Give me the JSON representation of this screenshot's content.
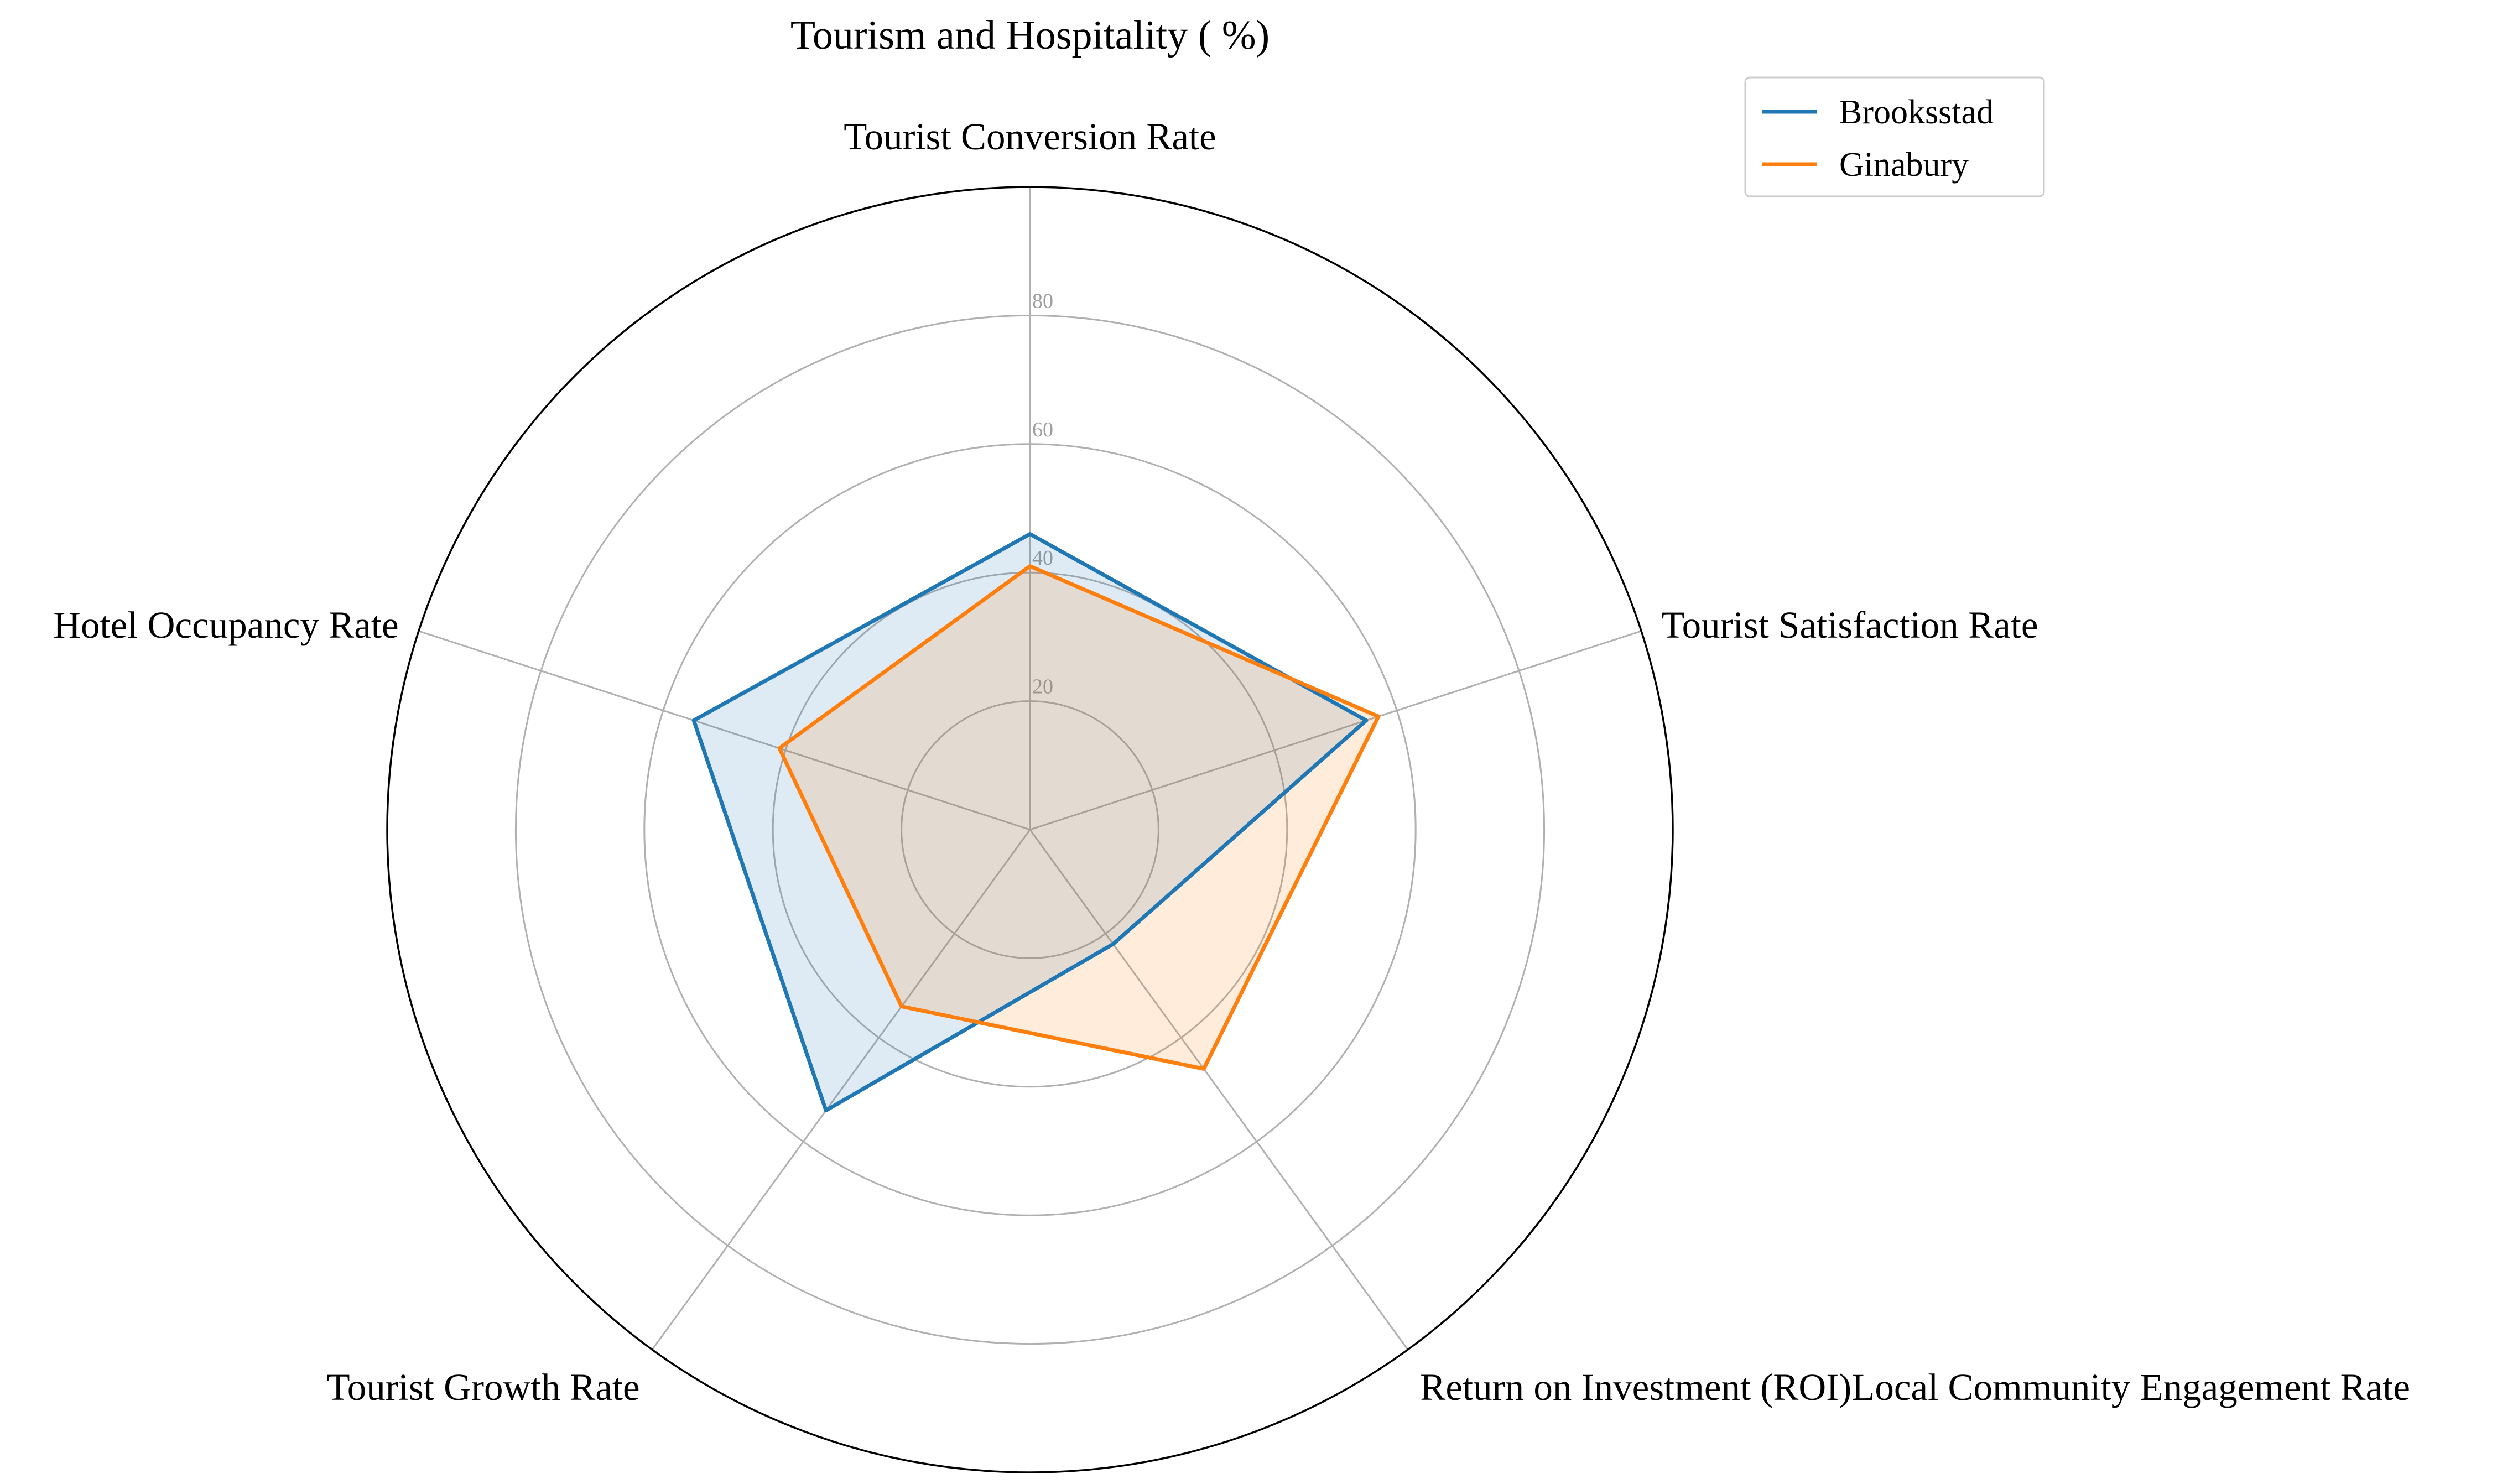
{
  "chart_data": {
    "type": "radar",
    "title": "Tourism and Hospitality ( %)",
    "axes": [
      "Tourist Conversion Rate",
      "Tourist Satisfaction Rate",
      "Return on Investment (ROI)Local Community Engagement Rate",
      "Tourist Growth Rate",
      "Hotel Occupancy Rate"
    ],
    "radial_ticks": [
      "20",
      "40",
      "60",
      "80"
    ],
    "tick_values": [
      20,
      40,
      60,
      80
    ],
    "rlim": [
      0,
      100
    ],
    "grid": true,
    "legend_position": "top-right",
    "series": [
      {
        "name": "Brooksstad",
        "color": "#1f77b4",
        "values": [
          46,
          55,
          22,
          54,
          55
        ]
      },
      {
        "name": "Ginabury",
        "color": "#ff7f0e",
        "values": [
          41,
          57,
          46,
          34,
          41
        ]
      }
    ]
  }
}
